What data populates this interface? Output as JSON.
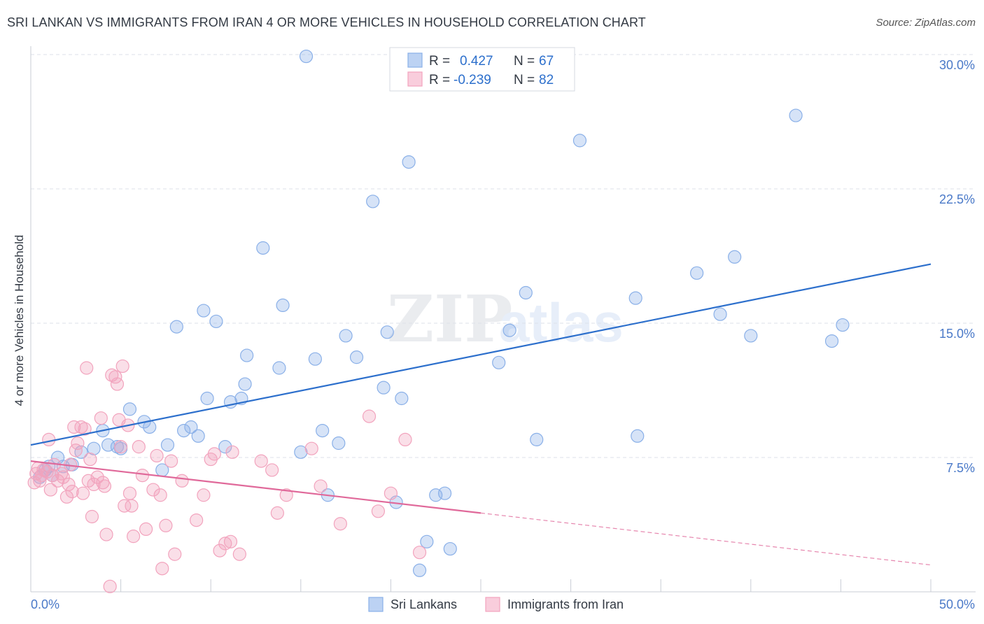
{
  "header": {
    "title": "SRI LANKAN VS IMMIGRANTS FROM IRAN 4 OR MORE VEHICLES IN HOUSEHOLD CORRELATION CHART",
    "source": "Source: ZipAtlas.com"
  },
  "watermark": {
    "zip": "ZIP",
    "atlas": "atlas"
  },
  "chart_data": {
    "type": "scatter",
    "title": "SRI LANKAN VS IMMIGRANTS FROM IRAN 4 OR MORE VEHICLES IN HOUSEHOLD CORRELATION CHART",
    "xlabel": "",
    "ylabel": "4 or more Vehicles in Household",
    "xlim": [
      0,
      50
    ],
    "ylim": [
      0,
      30
    ],
    "x_tick_labels": [
      "0.0%",
      "50.0%"
    ],
    "y_ticks": [
      7.5,
      15.0,
      22.5,
      30.0
    ],
    "y_tick_labels": [
      "7.5%",
      "15.0%",
      "22.5%",
      "30.0%"
    ],
    "grid": true,
    "legend_position": "top-center",
    "stats": [
      {
        "r_label": "R =",
        "r_value": "0.427",
        "n_label": "N =",
        "n_value": "67"
      },
      {
        "r_label": "R =",
        "r_value": "-0.239",
        "n_label": "N =",
        "n_value": "82"
      }
    ],
    "series": [
      {
        "name": "Sri Lankans",
        "color": "#8ab0e8",
        "line_color": "#2c6fcc",
        "trend": {
          "x": [
            0,
            50
          ],
          "y": [
            8.2,
            18.3
          ],
          "solid_until": 50
        },
        "points": [
          [
            0.5,
            6.4
          ],
          [
            0.8,
            6.8
          ],
          [
            1.0,
            7.0
          ],
          [
            1.2,
            6.5
          ],
          [
            1.5,
            7.5
          ],
          [
            1.8,
            7.0
          ],
          [
            2.3,
            7.1
          ],
          [
            2.8,
            7.8
          ],
          [
            3.5,
            8.0
          ],
          [
            4.0,
            9.0
          ],
          [
            4.3,
            8.2
          ],
          [
            4.8,
            8.1
          ],
          [
            5.0,
            8.0
          ],
          [
            5.5,
            10.2
          ],
          [
            6.3,
            9.5
          ],
          [
            6.6,
            9.2
          ],
          [
            7.3,
            6.8
          ],
          [
            7.6,
            8.2
          ],
          [
            8.1,
            14.8
          ],
          [
            8.5,
            9.0
          ],
          [
            8.9,
            9.2
          ],
          [
            9.3,
            8.7
          ],
          [
            9.6,
            15.7
          ],
          [
            9.8,
            10.8
          ],
          [
            10.3,
            15.1
          ],
          [
            10.8,
            8.1
          ],
          [
            11.1,
            10.6
          ],
          [
            11.7,
            10.8
          ],
          [
            11.9,
            11.6
          ],
          [
            12.0,
            13.2
          ],
          [
            12.9,
            19.2
          ],
          [
            13.8,
            12.5
          ],
          [
            14.0,
            16.0
          ],
          [
            15.0,
            7.8
          ],
          [
            15.3,
            29.9
          ],
          [
            15.8,
            13.0
          ],
          [
            16.2,
            9.0
          ],
          [
            16.5,
            5.4
          ],
          [
            17.1,
            8.3
          ],
          [
            17.5,
            14.3
          ],
          [
            18.1,
            13.1
          ],
          [
            19.0,
            21.8
          ],
          [
            19.6,
            11.4
          ],
          [
            19.8,
            14.5
          ],
          [
            20.3,
            5.0
          ],
          [
            20.6,
            10.8
          ],
          [
            21.0,
            24.0
          ],
          [
            21.6,
            1.2
          ],
          [
            22.0,
            2.8
          ],
          [
            22.5,
            5.4
          ],
          [
            23.0,
            5.5
          ],
          [
            23.3,
            2.4
          ],
          [
            26.0,
            12.8
          ],
          [
            26.6,
            14.6
          ],
          [
            27.5,
            16.7
          ],
          [
            28.1,
            8.5
          ],
          [
            30.5,
            25.2
          ],
          [
            33.6,
            16.4
          ],
          [
            33.7,
            8.7
          ],
          [
            37.0,
            17.8
          ],
          [
            38.3,
            15.5
          ],
          [
            39.1,
            18.7
          ],
          [
            40.0,
            14.3
          ],
          [
            42.5,
            26.6
          ],
          [
            44.5,
            14.0
          ],
          [
            45.1,
            14.9
          ]
        ]
      },
      {
        "name": "Immigrants from Iran",
        "color": "#f2a3bd",
        "line_color": "#e0699a",
        "trend": {
          "x": [
            0,
            50
          ],
          "y": [
            7.3,
            1.5
          ],
          "solid_until": 25
        },
        "points": [
          [
            0.2,
            6.1
          ],
          [
            0.3,
            6.6
          ],
          [
            0.4,
            6.9
          ],
          [
            0.5,
            6.2
          ],
          [
            0.6,
            6.5
          ],
          [
            0.7,
            6.8
          ],
          [
            0.9,
            6.7
          ],
          [
            1.0,
            8.5
          ],
          [
            1.1,
            5.7
          ],
          [
            1.2,
            6.5
          ],
          [
            1.3,
            7.1
          ],
          [
            1.5,
            6.2
          ],
          [
            1.7,
            6.6
          ],
          [
            1.8,
            6.4
          ],
          [
            2.0,
            5.3
          ],
          [
            2.1,
            6.0
          ],
          [
            2.2,
            7.1
          ],
          [
            2.3,
            5.6
          ],
          [
            2.4,
            9.2
          ],
          [
            2.5,
            7.9
          ],
          [
            2.6,
            8.3
          ],
          [
            2.8,
            9.2
          ],
          [
            2.9,
            5.5
          ],
          [
            3.0,
            9.1
          ],
          [
            3.1,
            12.5
          ],
          [
            3.2,
            6.2
          ],
          [
            3.3,
            7.4
          ],
          [
            3.4,
            4.2
          ],
          [
            3.5,
            6.0
          ],
          [
            3.7,
            6.4
          ],
          [
            3.9,
            9.7
          ],
          [
            4.0,
            6.1
          ],
          [
            4.1,
            5.9
          ],
          [
            4.2,
            3.2
          ],
          [
            4.4,
            0.3
          ],
          [
            4.5,
            12.1
          ],
          [
            4.7,
            12.0
          ],
          [
            4.8,
            11.6
          ],
          [
            4.9,
            9.6
          ],
          [
            5.0,
            8.1
          ],
          [
            5.1,
            12.6
          ],
          [
            5.2,
            4.8
          ],
          [
            5.4,
            9.3
          ],
          [
            5.5,
            5.5
          ],
          [
            5.6,
            4.8
          ],
          [
            5.7,
            3.1
          ],
          [
            6.0,
            8.1
          ],
          [
            6.2,
            6.5
          ],
          [
            6.4,
            3.5
          ],
          [
            6.8,
            5.7
          ],
          [
            7.0,
            7.6
          ],
          [
            7.2,
            5.4
          ],
          [
            7.3,
            1.3
          ],
          [
            7.5,
            3.7
          ],
          [
            7.8,
            7.3
          ],
          [
            8.0,
            2.1
          ],
          [
            8.4,
            6.2
          ],
          [
            9.2,
            4.0
          ],
          [
            9.6,
            5.4
          ],
          [
            10.0,
            7.4
          ],
          [
            10.2,
            7.7
          ],
          [
            10.5,
            2.3
          ],
          [
            10.8,
            2.7
          ],
          [
            11.1,
            2.8
          ],
          [
            11.2,
            7.8
          ],
          [
            11.6,
            2.1
          ],
          [
            12.8,
            7.3
          ],
          [
            13.4,
            6.8
          ],
          [
            13.7,
            4.4
          ],
          [
            14.2,
            5.4
          ],
          [
            15.6,
            8.0
          ],
          [
            16.1,
            5.9
          ],
          [
            17.2,
            3.8
          ],
          [
            18.8,
            9.8
          ],
          [
            19.3,
            4.5
          ],
          [
            20.0,
            5.5
          ],
          [
            20.8,
            8.5
          ],
          [
            21.6,
            2.2
          ]
        ]
      }
    ]
  },
  "legend": {
    "items": [
      {
        "label": "Sri Lankans",
        "color": "#8ab0e8"
      },
      {
        "label": "Immigrants from Iran",
        "color": "#f2a3bd"
      }
    ]
  },
  "colors": {
    "blue_text": "#2c6fcc",
    "axis_text": "#4a79c8",
    "grid": "#dde2ea"
  }
}
